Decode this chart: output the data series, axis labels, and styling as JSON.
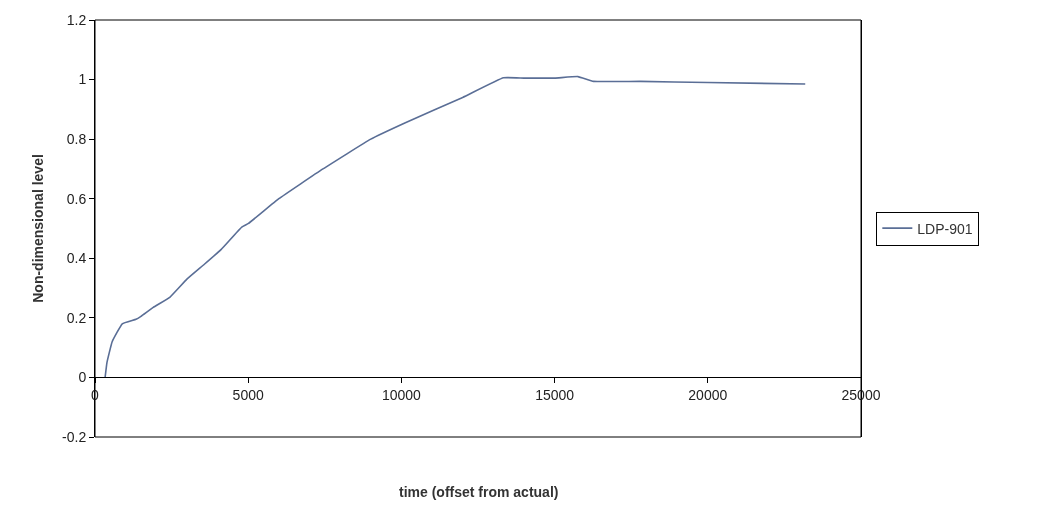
{
  "chart_data": {
    "type": "line",
    "xlabel": "time (offset from actual)",
    "ylabel": "Non-dimensional level",
    "series": [
      {
        "name": "LDP-901",
        "color": "#5a6e96",
        "x": [
          330,
          390,
          560,
          890,
          1340,
          1500,
          1900,
          2450,
          3000,
          3570,
          4120,
          4790,
          5010,
          6000,
          7440,
          9000,
          10130,
          12000,
          13330,
          14000,
          15000,
          15760,
          16270,
          17800,
          20000,
          23180
        ],
        "values": [
          0,
          0.05,
          0.12,
          0.18,
          0.195,
          0.205,
          0.235,
          0.27,
          0.33,
          0.38,
          0.43,
          0.505,
          0.517,
          0.6,
          0.7,
          0.8,
          0.855,
          0.94,
          1.006,
          1.005,
          1.005,
          1.01,
          0.994,
          0.994,
          0.99,
          0.985
        ]
      }
    ],
    "xlim": [
      0,
      25000
    ],
    "xticks": [
      0,
      5000,
      10000,
      15000,
      20000,
      25000
    ],
    "ylim": [
      -0.2,
      1.2
    ],
    "yticks": [
      -0.2,
      0,
      0.2,
      0.4,
      0.6,
      0.8,
      1,
      1.2
    ],
    "legend": "right",
    "marker": "none",
    "line_style": "solid"
  }
}
